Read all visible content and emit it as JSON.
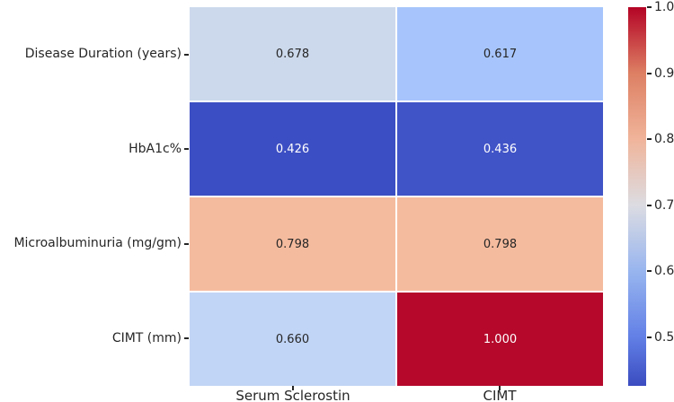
{
  "figure": {
    "background": "#ffffff",
    "text_color": "#262626"
  },
  "chart_data": {
    "type": "heatmap",
    "title": "",
    "xlabel": "",
    "ylabel": "",
    "rows": [
      "Disease Duration (years)",
      "HbA1c%",
      "Microalbuminuria (mg/gm)",
      "CIMT (mm)"
    ],
    "columns": [
      "Serum Sclerostin",
      "CIMT"
    ],
    "values": [
      [
        0.678,
        0.617
      ],
      [
        0.426,
        0.436
      ],
      [
        0.798,
        0.798
      ],
      [
        0.66,
        1.0
      ]
    ],
    "cell_labels": [
      [
        "0.678",
        "0.617"
      ],
      [
        "0.426",
        "0.436"
      ],
      [
        "0.798",
        "0.798"
      ],
      [
        "0.660",
        "1.000"
      ]
    ],
    "cell_colors": [
      [
        "#ccd9ec",
        "#a7c5fc"
      ],
      [
        "#3c4ec3",
        "#4053c7"
      ],
      [
        "#f5bb9e",
        "#f5bb9e"
      ],
      [
        "#c1d5f6",
        "#b5082b"
      ]
    ],
    "cell_text_colors": [
      [
        "#262626",
        "#262626"
      ],
      [
        "#ffffff",
        "#ffffff"
      ],
      [
        "#262626",
        "#262626"
      ],
      [
        "#262626",
        "#ffffff"
      ]
    ],
    "colormap": "coolwarm",
    "vmin": 0.426,
    "vmax": 1.0,
    "grid": false,
    "legend_position": "right-colorbar",
    "colorbar": {
      "tick_labels": [
        "1.0",
        "0.9",
        "0.8",
        "0.7",
        "0.6",
        "0.5"
      ],
      "tick_values": [
        1.0,
        0.9,
        0.8,
        0.7,
        0.6,
        0.5
      ],
      "gradient_stops": [
        {
          "pos": 0,
          "color": "#b40426"
        },
        {
          "pos": 17.4,
          "color": "#dd7f63"
        },
        {
          "pos": 34.8,
          "color": "#f0b49a"
        },
        {
          "pos": 52.3,
          "color": "#dcdce2"
        },
        {
          "pos": 69.7,
          "color": "#98b5ef"
        },
        {
          "pos": 87.1,
          "color": "#6280e6"
        },
        {
          "pos": 100,
          "color": "#3b4cc0"
        }
      ]
    }
  }
}
